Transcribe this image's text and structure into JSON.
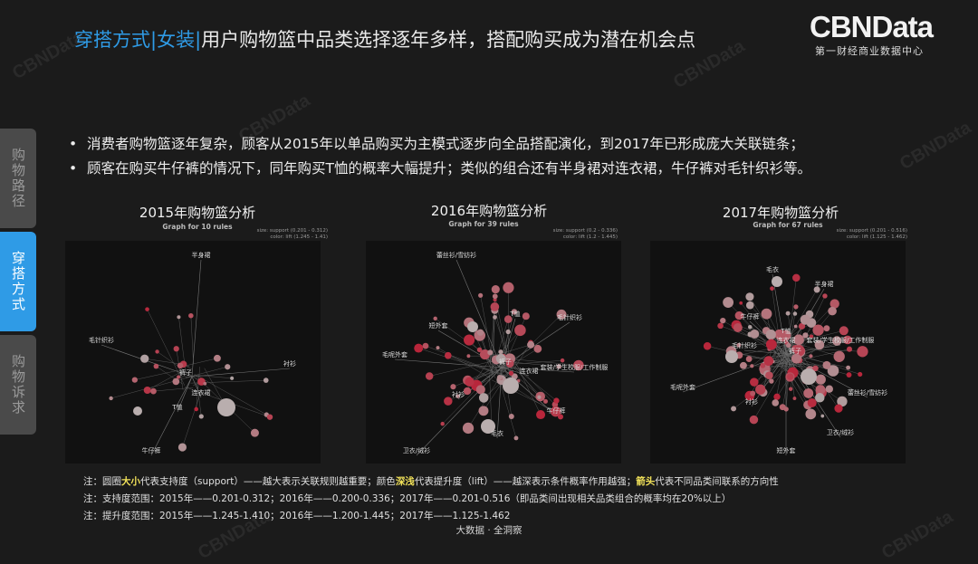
{
  "header": {
    "title_highlight": "穿搭方式|女装|",
    "title_rest": "用户购物篮中品类选择逐年多样，搭配购买成为潜在机会点"
  },
  "brand": {
    "logo": "CBNData",
    "subtitle": "第一财经商业数据中心"
  },
  "watermark": "CBNData",
  "side_tabs": [
    {
      "label": "购物路径",
      "active": false
    },
    {
      "label": "穿搭方式",
      "active": true
    },
    {
      "label": "购物诉求",
      "active": false
    }
  ],
  "bullets": [
    "消费者购物篮逐年复杂，顾客从2015年以单品购买为主模式逐步向全品搭配演化，到2017年已形成庞大关联链条；",
    "顾客在购买牛仔裤的情况下，同年购买T恤的概率大幅提升；类似的组合还有半身裙对连衣裙，牛仔裤对毛针织衫等。"
  ],
  "panels": [
    {
      "title": "2015年购物篮分析",
      "graph_label": "Graph for 10 rules",
      "size_legend": "size: support (0.201 - 0.312)",
      "color_legend": "color: lift (1.245 - 1.41)",
      "labels": [
        "半身裙",
        "毛针织衫",
        "衬衫",
        "裤子",
        "连衣裙",
        "T恤",
        "牛仔裤"
      ]
    },
    {
      "title": "2016年购物篮分析",
      "graph_label": "Graph for 39 rules",
      "size_legend": "size: support (0.2 - 0.336)",
      "color_legend": "color: lift (1.2 - 1.445)",
      "labels": [
        "蕾丝衫/雪纺衫",
        "短外套",
        "T恤",
        "毛针织衫",
        "毛呢外套",
        "裤子",
        "连衣裙",
        "套装/学生校服/工作制服",
        "衬衫",
        "牛仔裤",
        "毛衣",
        "卫衣/绒衫"
      ]
    },
    {
      "title": "2017年购物篮分析",
      "graph_label": "Graph for 67 rules",
      "size_legend": "size: support (0.201 - 0.516)",
      "color_legend": "color: lift (1.125 - 1.462)",
      "labels": [
        "毛衣",
        "半身裙",
        "T恤",
        "牛仔裤",
        "毛针织衫",
        "连衣裙",
        "裤子",
        "套装/学生校服/工作制服",
        "毛呢外套",
        "蕾丝衫/雪纺衫",
        "衬衫",
        "卫衣/绒衫",
        "短外套"
      ]
    }
  ],
  "notes": {
    "line1_a": "注：圆圈",
    "line1_k1": "大小",
    "line1_b": "代表支持度（support）——越大表示关联规则越重要；颜色",
    "line1_k2": "深浅",
    "line1_c": "代表提升度（lift）——越深表示条件概率作用越强；",
    "line1_k3": "箭头",
    "line1_d": "代表不同品类间联系的方向性",
    "line2": "注：支持度范围：2015年——0.201-0.312；2016年——0.200-0.336；2017年——0.201-0.516（即品类间出现相关品类组合的概率均在20%以上）",
    "line3": "注：提升度范围：2015年——1.245-1.410；2016年——1.200-1.445；2017年——1.125-1.462"
  },
  "footer": "大数据 · 全洞察",
  "colors": {
    "accent": "#2f9be6",
    "keyword": "#f3e35a",
    "node_dark": "#b8253a",
    "node_light": "#b0a4a4"
  }
}
